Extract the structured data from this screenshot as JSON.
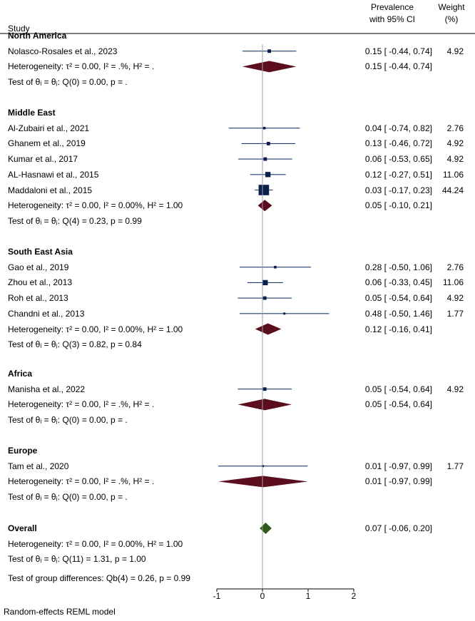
{
  "header": {
    "study": "Study",
    "prevalence_line1": "Prevalence",
    "prevalence_line2": "with 95% CI",
    "weight_line1": "Weight",
    "weight_line2": "(%)"
  },
  "groups": [
    {
      "name": "North America",
      "studies": [
        {
          "label": "Nolasco-Rosales et al., 2023",
          "est": 0.15,
          "lo": -0.44,
          "hi": 0.74,
          "ci": "0.15 [ -0.44,  0.74]",
          "weight": "4.92",
          "w": 4.92
        }
      ],
      "het": {
        "text": "Heterogeneity: τ² = 0.00, I² = .%, H² = .",
        "est": 0.15,
        "lo": -0.44,
        "hi": 0.74,
        "ci": "0.15 [ -0.44,  0.74]"
      },
      "test": "Test of θᵢ = θⱼ: Q(0) = 0.00, p = ."
    },
    {
      "name": "Middle East",
      "studies": [
        {
          "label": "Al-Zubairi et al., 2021",
          "est": 0.04,
          "lo": -0.74,
          "hi": 0.82,
          "ci": "0.04 [ -0.74,  0.82]",
          "weight": "2.76",
          "w": 2.76
        },
        {
          "label": "Ghanem et al., 2019",
          "est": 0.13,
          "lo": -0.46,
          "hi": 0.72,
          "ci": "0.13 [ -0.46,  0.72]",
          "weight": "4.92",
          "w": 4.92
        },
        {
          "label": "Kumar et al., 2017",
          "est": 0.06,
          "lo": -0.53,
          "hi": 0.65,
          "ci": "0.06 [ -0.53,  0.65]",
          "weight": "4.92",
          "w": 4.92
        },
        {
          "label": "AL-Hasnawi et al., 2015",
          "est": 0.12,
          "lo": -0.27,
          "hi": 0.51,
          "ci": "0.12 [ -0.27,  0.51]",
          "weight": "11.06",
          "w": 11.06
        },
        {
          "label": "Maddaloni et al., 2015",
          "est": 0.03,
          "lo": -0.17,
          "hi": 0.23,
          "ci": "0.03 [ -0.17,  0.23]",
          "weight": "44.24",
          "w": 44.24
        }
      ],
      "het": {
        "text": "Heterogeneity: τ² = 0.00, I² = 0.00%, H² = 1.00",
        "est": 0.05,
        "lo": -0.1,
        "hi": 0.21,
        "ci": "0.05 [ -0.10,  0.21]"
      },
      "test": "Test of θᵢ = θⱼ: Q(4) = 0.23, p = 0.99"
    },
    {
      "name": "South East Asia",
      "studies": [
        {
          "label": "Gao et al., 2019",
          "est": 0.28,
          "lo": -0.5,
          "hi": 1.06,
          "ci": "0.28 [ -0.50,  1.06]",
          "weight": "2.76",
          "w": 2.76
        },
        {
          "label": "Zhou et al., 2013",
          "est": 0.06,
          "lo": -0.33,
          "hi": 0.45,
          "ci": "0.06 [ -0.33,  0.45]",
          "weight": "11.06",
          "w": 11.06
        },
        {
          "label": "Roh et al., 2013",
          "est": 0.05,
          "lo": -0.54,
          "hi": 0.64,
          "ci": "0.05 [ -0.54,  0.64]",
          "weight": "4.92",
          "w": 4.92
        },
        {
          "label": "Chandni et al., 2013",
          "est": 0.48,
          "lo": -0.5,
          "hi": 1.46,
          "ci": "0.48 [ -0.50,  1.46]",
          "weight": "1.77",
          "w": 1.77
        }
      ],
      "het": {
        "text": "Heterogeneity: τ² = 0.00, I² = 0.00%, H² = 1.00",
        "est": 0.12,
        "lo": -0.16,
        "hi": 0.41,
        "ci": "0.12 [ -0.16,  0.41]"
      },
      "test": "Test of θᵢ = θⱼ: Q(3) = 0.82, p = 0.84"
    },
    {
      "name": "Africa",
      "studies": [
        {
          "label": "Manisha et al., 2022",
          "est": 0.05,
          "lo": -0.54,
          "hi": 0.64,
          "ci": "0.05 [ -0.54,  0.64]",
          "weight": "4.92",
          "w": 4.92
        }
      ],
      "het": {
        "text": "Heterogeneity: τ² = 0.00, I² = .%, H² = .",
        "est": 0.05,
        "lo": -0.54,
        "hi": 0.64,
        "ci": "0.05 [ -0.54,  0.64]"
      },
      "test": "Test of θᵢ = θⱼ: Q(0) = 0.00, p = ."
    },
    {
      "name": "Europe",
      "studies": [
        {
          "label": "Tam et al., 2020",
          "est": 0.01,
          "lo": -0.97,
          "hi": 0.99,
          "ci": "0.01 [ -0.97,  0.99]",
          "weight": "1.77",
          "w": 1.77
        }
      ],
      "het": {
        "text": "Heterogeneity: τ² = 0.00, I² = .%, H² = .",
        "est": 0.01,
        "lo": -0.97,
        "hi": 0.99,
        "ci": "0.01 [ -0.97,  0.99]"
      },
      "test": "Test of θᵢ = θⱼ: Q(0) = 0.00, p = ."
    }
  ],
  "overall": {
    "name": "Overall",
    "est": 0.07,
    "lo": -0.06,
    "hi": 0.2,
    "ci": "0.07 [ -0.06,  0.20]",
    "het": "Heterogeneity: τ² = 0.00, I² = 0.00%, H² = 1.00",
    "test": "Test of θᵢ = θⱼ: Q(11) = 1.31, p = 1.00"
  },
  "group_diff": "Test of group differences: Qb(4) = 0.26, p = 0.99",
  "footer": "Random-effects REML model",
  "colors": {
    "ci_line": "#1f3a6e",
    "marker": "#0b1f4f",
    "subgroup_diamond": "#5b0f1e",
    "overall_diamond": "#2c5a1a",
    "ref_line": "#9aa0a6"
  },
  "chart_data": {
    "type": "forest",
    "title": "",
    "xlabel": "",
    "ylabel": "",
    "xlim": [
      -1,
      2
    ],
    "x_ticks": [
      -1,
      0,
      1,
      2
    ],
    "x_tick_labels": [
      "-1",
      "0",
      "1",
      "2"
    ],
    "reference_line": 0,
    "model": "Random-effects REML model"
  }
}
